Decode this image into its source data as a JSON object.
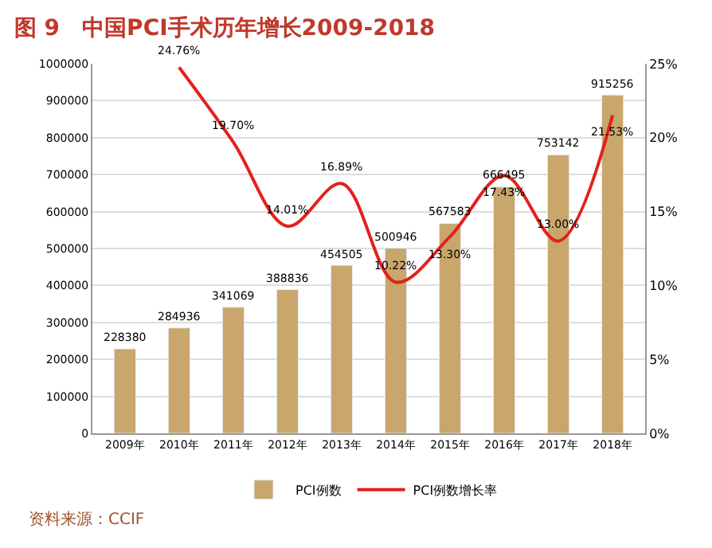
{
  "chart_data": {
    "type": "bar",
    "title": "图 9　中国PCI手术历年增长2009-2018",
    "categories": [
      "2009年",
      "2010年",
      "2011年",
      "2012年",
      "2013年",
      "2014年",
      "2015年",
      "2016年",
      "2017年",
      "2018年"
    ],
    "series": [
      {
        "name": "PCI例数",
        "color": "#c9a66b",
        "values": [
          228380,
          284936,
          341069,
          388836,
          454505,
          500946,
          567583,
          666495,
          753142,
          915256
        ],
        "value_labels": [
          "228380",
          "284936",
          "341069",
          "388836",
          "454505",
          "500946",
          "567583",
          "666495",
          "753142",
          "915256"
        ]
      },
      {
        "name": "PCI例数增长率",
        "type": "line",
        "axis": "y2",
        "color": "#e3211c",
        "values": [
          null,
          24.76,
          19.7,
          14.01,
          16.89,
          10.22,
          13.3,
          17.43,
          13.0,
          21.53
        ],
        "value_labels": [
          null,
          "24.76%",
          "19.70%",
          "14.01%",
          "16.89%",
          "10.22%",
          "13.30%",
          "17.43%",
          "13.00%",
          "21.53%"
        ]
      }
    ],
    "ylim": [
      0,
      1000000
    ],
    "yticks": [
      0,
      100000,
      200000,
      300000,
      400000,
      500000,
      600000,
      700000,
      800000,
      900000,
      1000000
    ],
    "y2lim": [
      0,
      25
    ],
    "y2ticks": [
      {
        "value": 0,
        "label": "0%"
      },
      {
        "value": 5,
        "label": "5%"
      },
      {
        "value": 10,
        "label": "10%"
      },
      {
        "value": 15,
        "label": "15%"
      },
      {
        "value": 20,
        "label": "20%"
      },
      {
        "value": 25,
        "label": "25%"
      }
    ],
    "grid": "y",
    "legend": "bottom",
    "marker": "none",
    "line_style": "solid",
    "annotations": [
      "资料来源：CCIF"
    ]
  }
}
